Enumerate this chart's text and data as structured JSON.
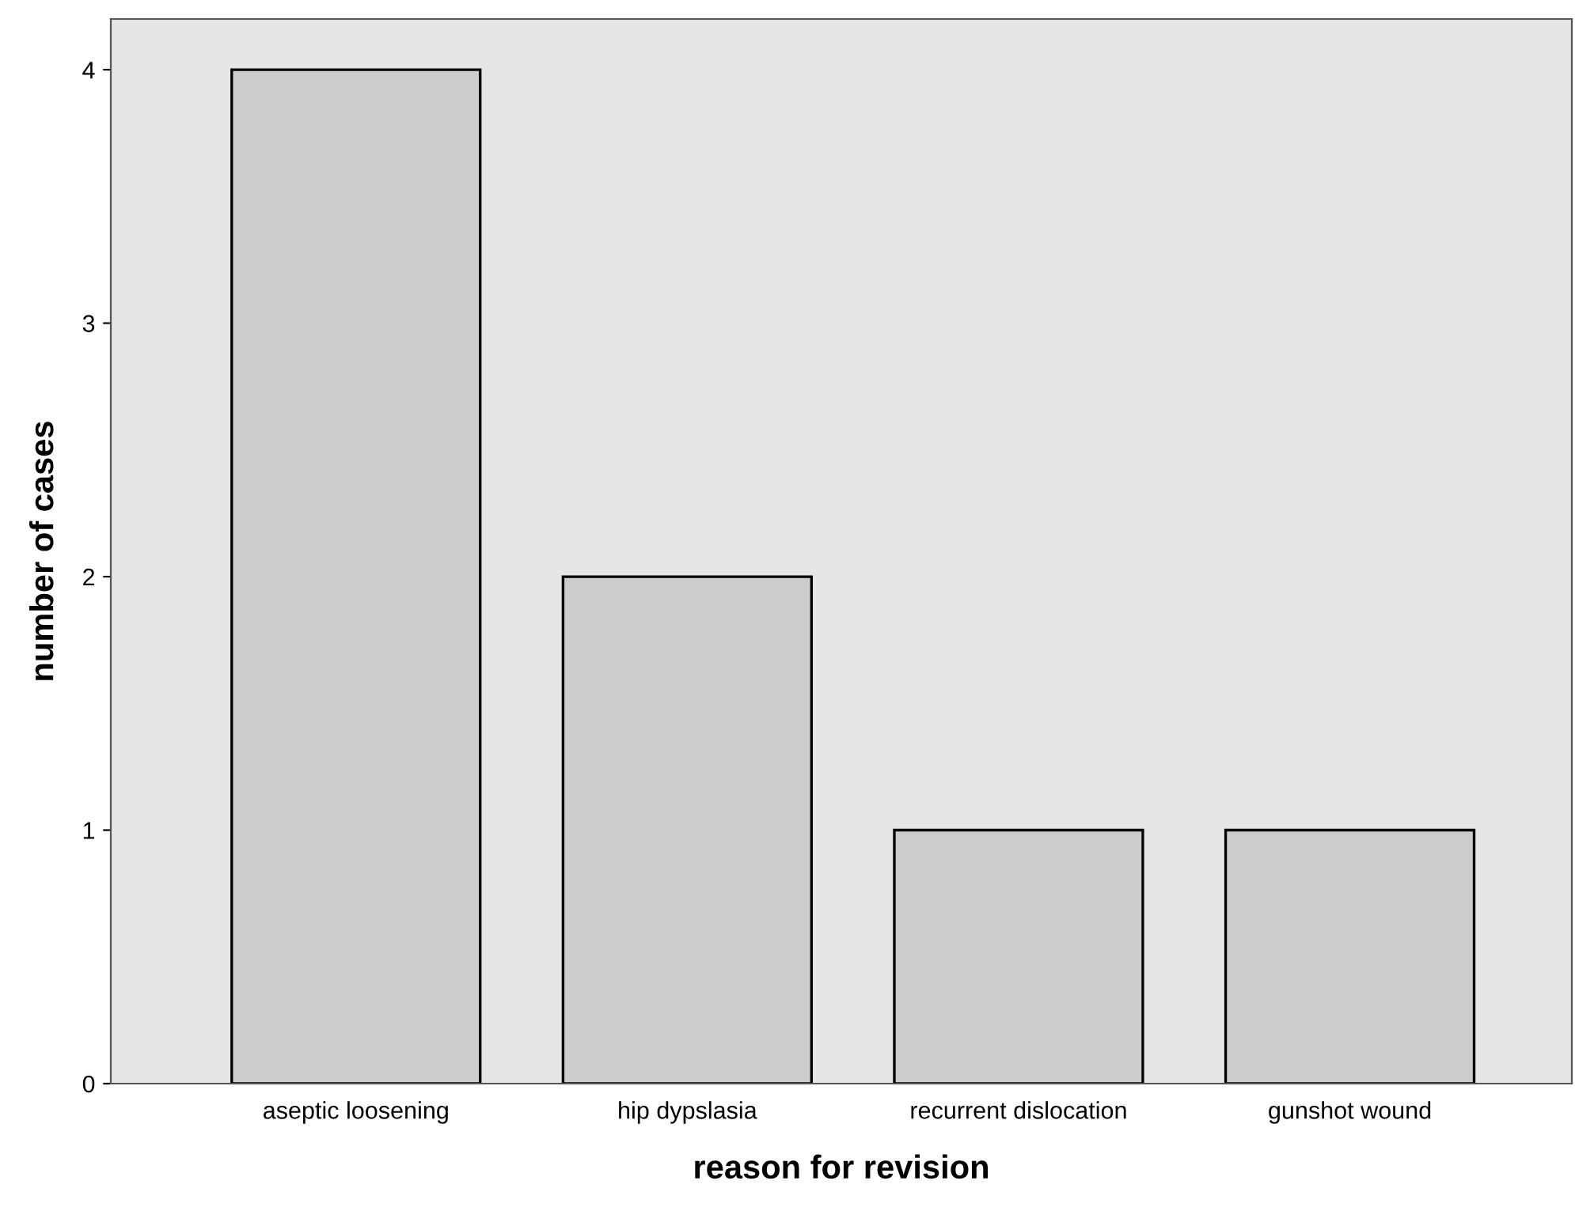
{
  "chart_data": {
    "type": "bar",
    "xlabel": "reason for revision",
    "ylabel": "number of cases",
    "categories": [
      "aseptic loosening",
      "hip dypslasia",
      "recurrent dislocation",
      "gunshot wound"
    ],
    "values": [
      4,
      2,
      1,
      1
    ],
    "color": "#cccccc",
    "ylim": [
      0,
      4.2
    ],
    "yticks": [
      0,
      1,
      2,
      3,
      4
    ],
    "grid": false
  }
}
